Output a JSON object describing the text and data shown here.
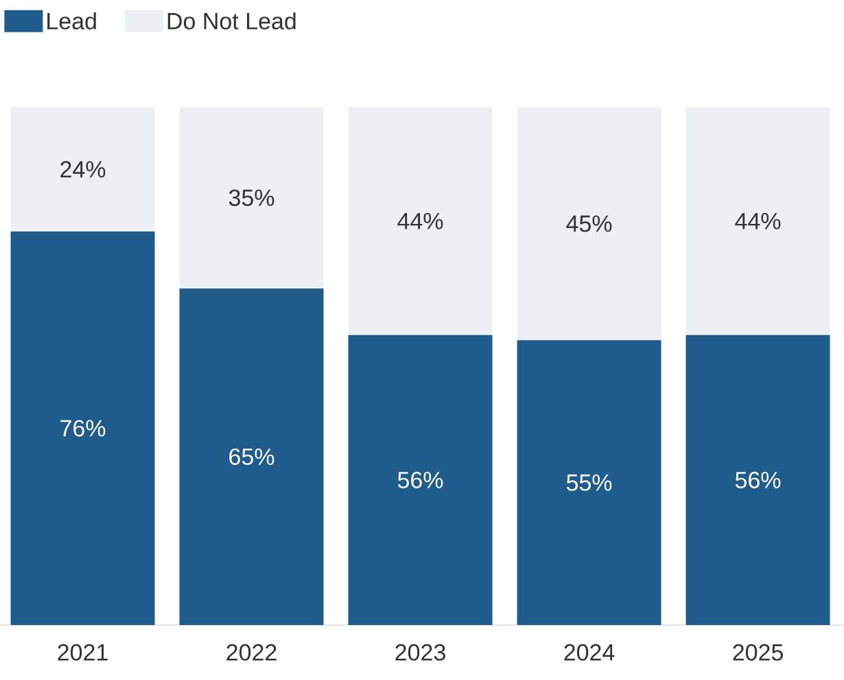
{
  "chart_data": {
    "type": "bar",
    "stacked": true,
    "categories": [
      "2021",
      "2022",
      "2023",
      "2024",
      "2025"
    ],
    "series": [
      {
        "name": "Lead",
        "color": "#1f5c8b",
        "values": [
          76,
          65,
          56,
          55,
          56
        ],
        "value_labels": [
          "76%",
          "65%",
          "56%",
          "55%",
          "56%"
        ]
      },
      {
        "name": "Do Not Lead",
        "color": "#edf0f3",
        "values": [
          24,
          35,
          44,
          45,
          44
        ],
        "value_labels": [
          "24%",
          "35%",
          "44%",
          "45%",
          "44%"
        ]
      }
    ],
    "legend": "top left"
  }
}
